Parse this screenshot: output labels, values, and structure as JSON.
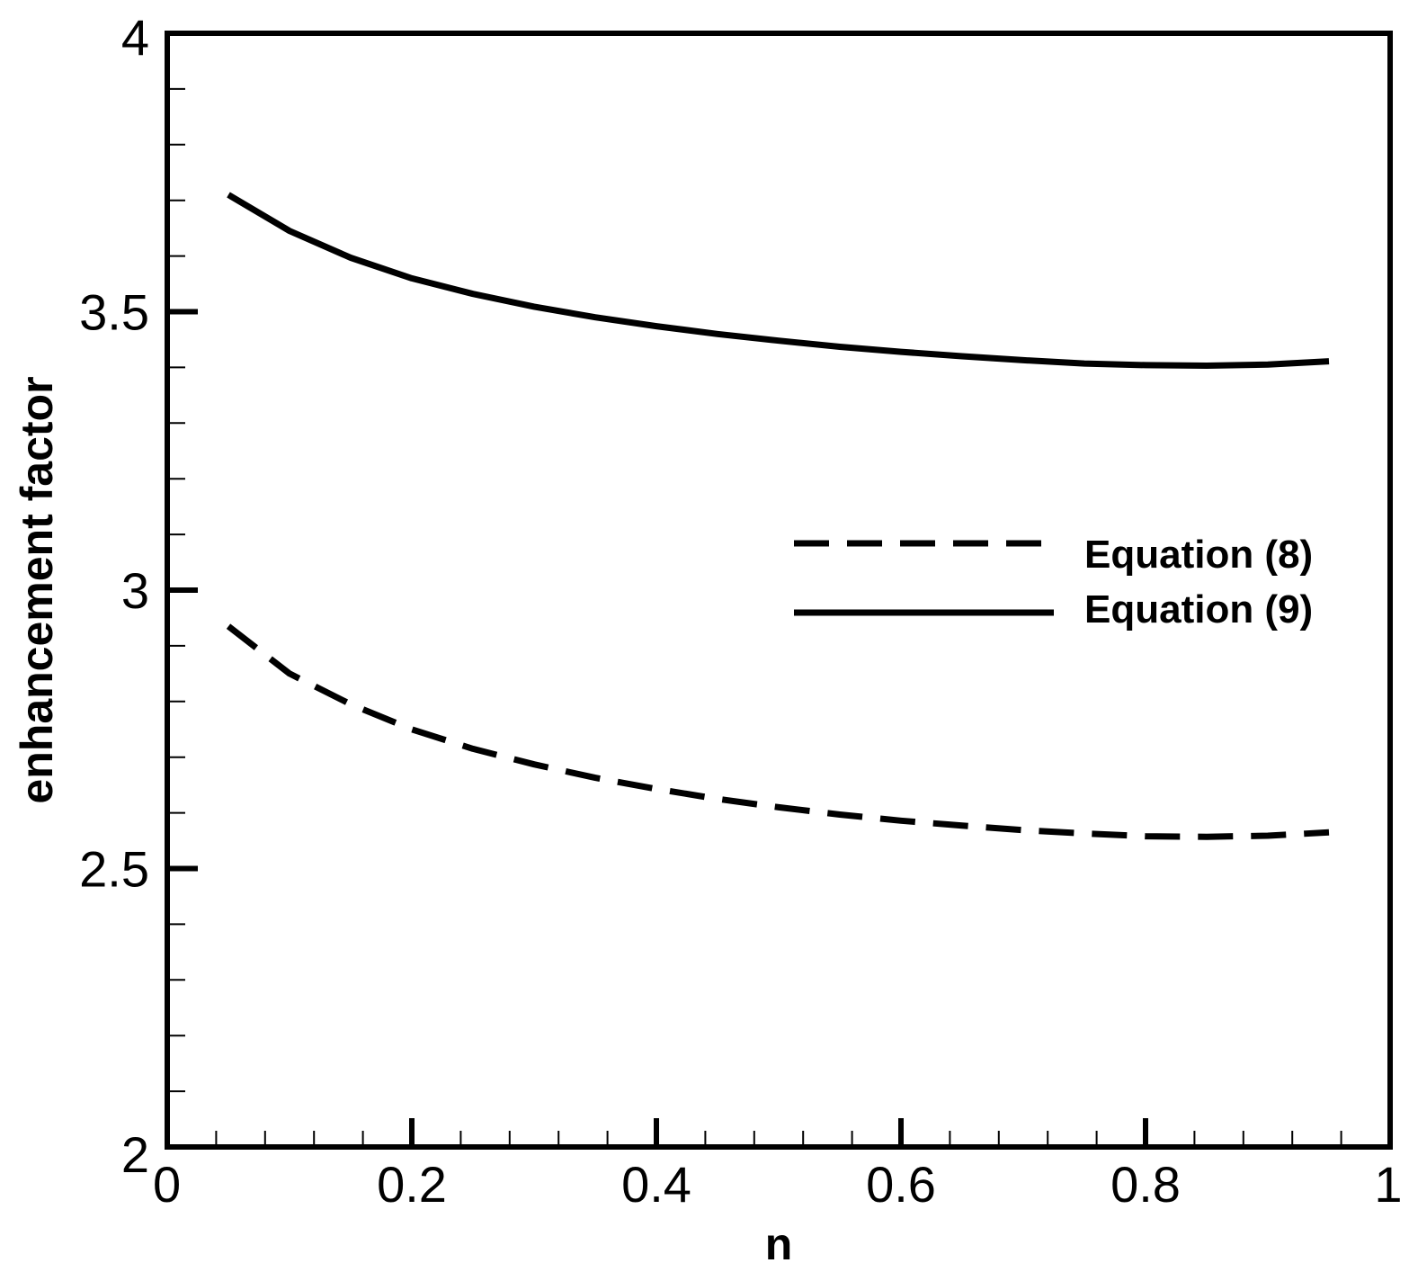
{
  "chart_data": {
    "type": "line",
    "xlabel": "n",
    "ylabel": "enhancement factor",
    "xlim": [
      0,
      1
    ],
    "ylim": [
      2,
      4
    ],
    "x_ticks": [
      "0",
      "0.2",
      "0.4",
      "0.6",
      "0.8",
      "1"
    ],
    "x_tick_values": [
      0,
      0.2,
      0.4,
      0.6,
      0.8,
      1
    ],
    "y_ticks": [
      "2",
      "2.5",
      "3",
      "3.5",
      "4"
    ],
    "y_tick_values": [
      2,
      2.5,
      3,
      3.5,
      4
    ],
    "x_minor_step": 0.04,
    "y_minor_step": 0.1,
    "grid": false,
    "legend_position": "right",
    "series": [
      {
        "name": "Equation (8)",
        "style": "dashed",
        "x": [
          0.05,
          0.1,
          0.15,
          0.2,
          0.25,
          0.3,
          0.35,
          0.4,
          0.45,
          0.5,
          0.55,
          0.6,
          0.65,
          0.7,
          0.75,
          0.8,
          0.85,
          0.9,
          0.95
        ],
        "values": [
          2.935,
          2.85,
          2.795,
          2.75,
          2.715,
          2.687,
          2.663,
          2.643,
          2.625,
          2.61,
          2.597,
          2.586,
          2.577,
          2.569,
          2.563,
          2.558,
          2.557,
          2.559,
          2.565
        ]
      },
      {
        "name": "Equation (9)",
        "style": "solid",
        "x": [
          0.05,
          0.1,
          0.15,
          0.2,
          0.25,
          0.3,
          0.35,
          0.4,
          0.45,
          0.5,
          0.55,
          0.6,
          0.65,
          0.7,
          0.75,
          0.8,
          0.85,
          0.9,
          0.95
        ],
        "values": [
          3.71,
          3.645,
          3.597,
          3.56,
          3.532,
          3.509,
          3.49,
          3.474,
          3.46,
          3.448,
          3.437,
          3.428,
          3.42,
          3.413,
          3.407,
          3.404,
          3.403,
          3.405,
          3.411
        ]
      }
    ]
  }
}
